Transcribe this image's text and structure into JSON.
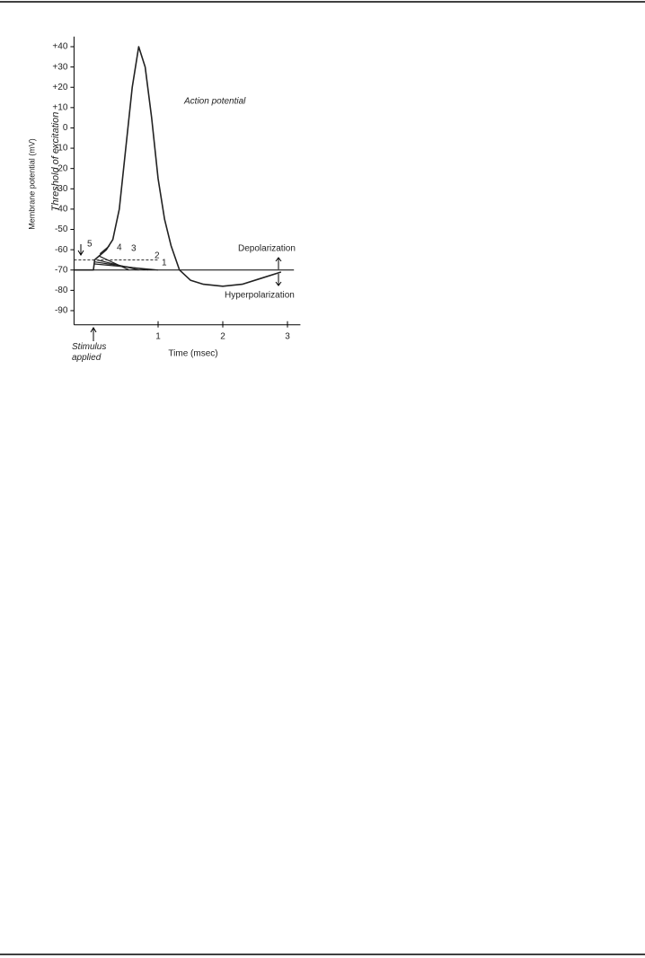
{
  "chart_data": {
    "type": "line",
    "y_label": "Membrane potential (mV)",
    "x_label": "Time (msec)",
    "xlim": [
      -0.3,
      3.2
    ],
    "ylim": [
      -97,
      45
    ],
    "xticks": [
      1,
      2,
      3
    ],
    "yticks": [
      {
        "value": 40,
        "label": "+40"
      },
      {
        "value": 30,
        "label": "+30"
      },
      {
        "value": 20,
        "label": "+20"
      },
      {
        "value": 10,
        "label": "+10"
      },
      0,
      -10,
      -20,
      -30,
      -40,
      -50,
      -60,
      -70,
      -80,
      -90
    ],
    "threshold": -65,
    "threshold_label": "Threshold of excitation",
    "resting": -70,
    "color": "#222",
    "series": [
      {
        "name": "Action potential",
        "x": [
          -0.3,
          0,
          0.02,
          0.2,
          0.3,
          0.4,
          0.5,
          0.6,
          0.7,
          0.8,
          0.9,
          1.0,
          1.1,
          1.2,
          1.33,
          1.5,
          1.7,
          2.0,
          2.3,
          2.6,
          2.9
        ],
        "values": [
          -70,
          -70,
          -65,
          -60,
          -55,
          -40,
          -10,
          20,
          40,
          30,
          5,
          -25,
          -45,
          -58,
          -70,
          -75,
          -77,
          -78,
          -77,
          -74,
          -71
        ]
      },
      {
        "name": "1",
        "x": [
          0.02,
          1.0
        ],
        "values": [
          -67,
          -70
        ]
      },
      {
        "name": "2",
        "x": [
          0.02,
          0.85
        ],
        "values": [
          -66,
          -70
        ]
      },
      {
        "name": "3",
        "x": [
          0.05,
          0.7
        ],
        "values": [
          -65,
          -70
        ]
      },
      {
        "name": "4",
        "x": [
          0.08,
          0.55
        ],
        "values": [
          -63,
          -70
        ]
      },
      {
        "name": "5",
        "x": [
          0.1,
          0.25
        ],
        "values": [
          -62,
          -58
        ]
      }
    ],
    "annotations": [
      {
        "text": "Depolarization"
      },
      {
        "text": "Hyperpolarization"
      },
      {
        "text": "Stimulus applied"
      }
    ]
  }
}
